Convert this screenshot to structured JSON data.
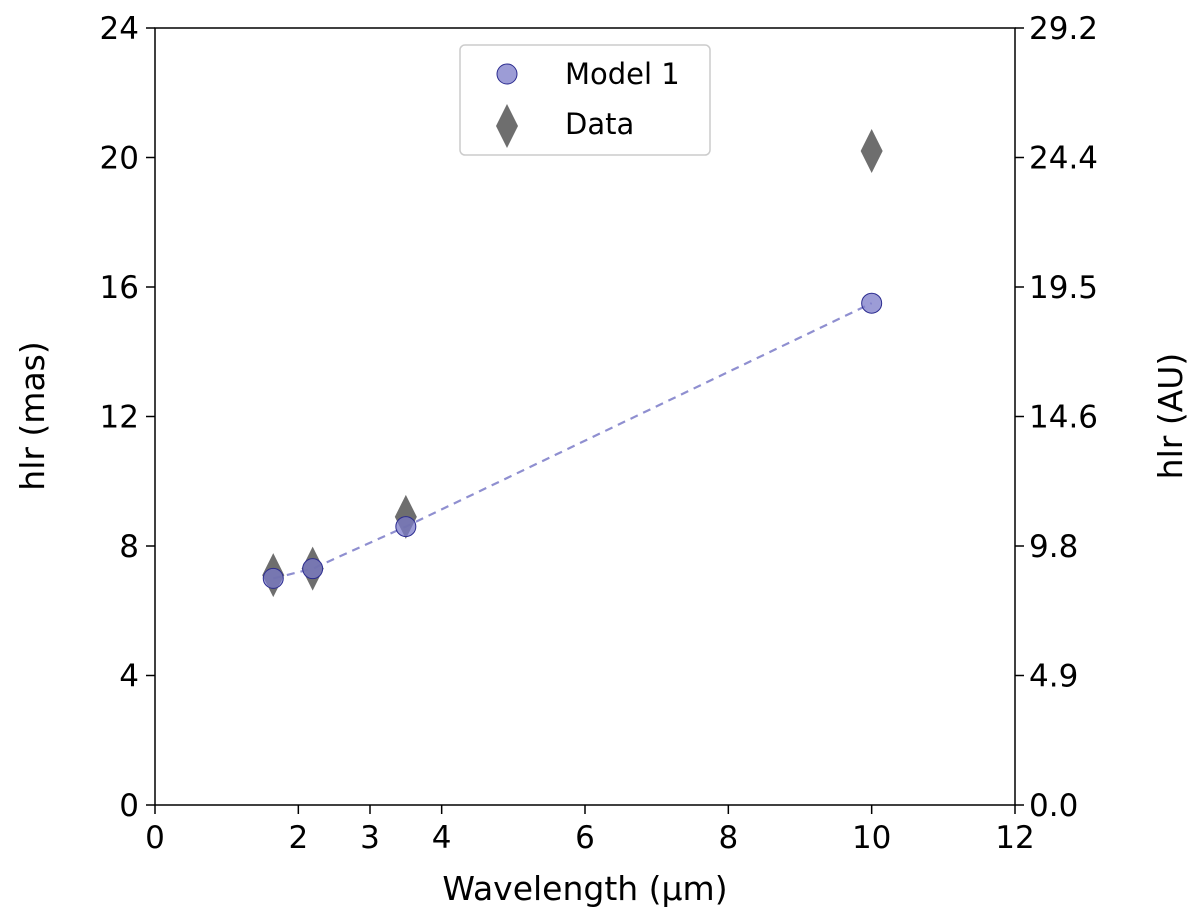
{
  "chart_data": {
    "type": "scatter",
    "xlabel": "Wavelength (μm)",
    "ylabel": "hlr (mas)",
    "ylabel_right": "hlr (AU)",
    "xlim": [
      0,
      12
    ],
    "ylim": [
      0,
      24
    ],
    "x_ticks": [
      0,
      2,
      3,
      4,
      6,
      8,
      10,
      12
    ],
    "y_ticks": [
      0,
      4,
      8,
      12,
      16,
      20,
      24
    ],
    "y_right_ticks": [
      "0.0",
      "4.9",
      "9.8",
      "14.6",
      "19.5",
      "24.4",
      "29.2"
    ],
    "legend_position": "top-center",
    "series": [
      {
        "name": "Model 1",
        "marker": "circle",
        "color": "#7b7bc8",
        "edge_color": "#2b2b8f",
        "line": "dashed",
        "points": [
          {
            "x": 1.65,
            "y": 7.0
          },
          {
            "x": 2.2,
            "y": 7.3
          },
          {
            "x": 3.5,
            "y": 8.6
          },
          {
            "x": 10.0,
            "y": 15.5
          }
        ]
      },
      {
        "name": "Data",
        "marker": "diamond",
        "color": "#555555",
        "points": [
          {
            "x": 1.65,
            "y": 7.1
          },
          {
            "x": 2.2,
            "y": 7.3
          },
          {
            "x": 3.5,
            "y": 8.9
          },
          {
            "x": 10.0,
            "y": 20.2
          }
        ]
      }
    ]
  }
}
